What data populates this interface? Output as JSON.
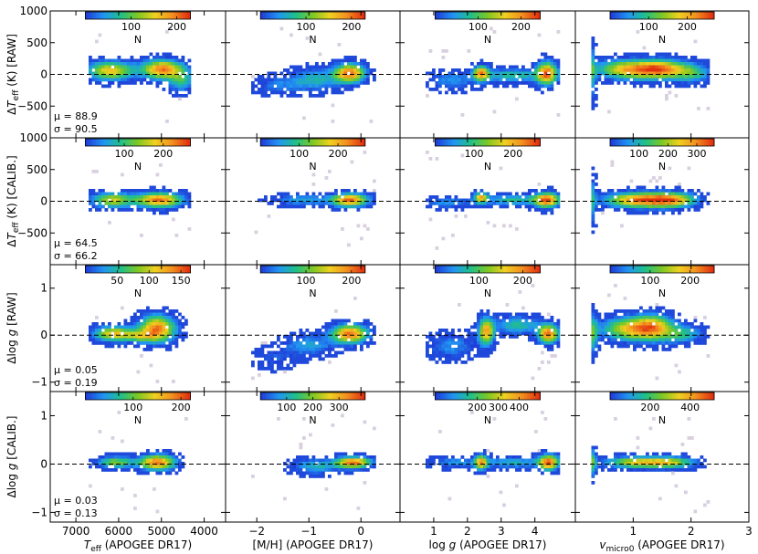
{
  "chart_data": {
    "type": "heatmap",
    "description_rows": [
      "ΔTeff RAW",
      "ΔTeff CALIB.",
      "Δlog g RAW",
      "Δlog g CALIB."
    ],
    "columns": [
      {
        "xlabel": "T_eff (APOGEE DR17)",
        "xlabel_main": "T",
        "xlabel_sub": "eff",
        "xlabel_rest": " (APOGEE DR17)",
        "xlim": [
          7600,
          3500
        ],
        "xticks": [
          7000,
          6000,
          5000,
          4000
        ],
        "xticklabels": [
          "7000",
          "6000",
          "5000",
          "4000"
        ]
      },
      {
        "xlabel": "[M/H] (APOGEE DR17)",
        "xlabel_main": "[M/H] (APOGEE DR17)",
        "xlabel_sub": "",
        "xlabel_rest": "",
        "xlim": [
          -2.6,
          0.75
        ],
        "xticks": [
          -2,
          -1,
          0
        ],
        "xticklabels": [
          "−2",
          "−1",
          "0"
        ]
      },
      {
        "xlabel": "log g (APOGEE DR17)",
        "xlabel_main": "log ",
        "xlabel_italic": "g",
        "xlabel_sub": "",
        "xlabel_rest": " (APOGEE DR17)",
        "xlim": [
          0.0,
          5.2
        ],
        "xticks": [
          1,
          2,
          3,
          4
        ],
        "xticklabels": [
          "1",
          "2",
          "3",
          "4"
        ]
      },
      {
        "xlabel": "v_micro0 (APOGEE DR17)",
        "xlabel_main": "v",
        "xlabel_sub": "micro0",
        "xlabel_rest": " (APOGEE DR17)",
        "xlim": [
          0.0,
          3.0
        ],
        "xticks": [
          1,
          2,
          3
        ],
        "xticklabels": [
          "1",
          "2",
          "3"
        ]
      }
    ],
    "rows": [
      {
        "ylabel_pre": "ΔT",
        "ylabel_sub": "eff",
        "ylabel_post": " (K) [RAW]",
        "ylim": [
          -1000,
          1000
        ],
        "yticks": [
          -500,
          0,
          500,
          1000
        ],
        "yticklabels": [
          "−500",
          "0",
          "500",
          "1000"
        ],
        "mu": "μ = 88.9",
        "sigma": "σ = 90.5",
        "colorbars": [
          {
            "max": 230,
            "ticks": [
              100,
              200
            ],
            "label": "N"
          },
          {
            "max": 230,
            "ticks": [
              100,
              200
            ],
            "label": "N"
          },
          {
            "max": 245,
            "ticks": [
              100,
              200
            ],
            "label": "N"
          },
          {
            "max": 270,
            "ticks": [
              100,
              200
            ],
            "label": "N"
          }
        ]
      },
      {
        "ylabel_pre": "ΔT",
        "ylabel_sub": "eff",
        "ylabel_post": " (K) [CALIB.]",
        "ylim": [
          -1000,
          1000
        ],
        "yticks": [
          -500,
          0,
          500,
          1000
        ],
        "yticklabels": [
          "−500",
          "0",
          "500",
          "1000"
        ],
        "mu": "μ = 64.5",
        "sigma": "σ = 66.2",
        "colorbars": [
          {
            "max": 270,
            "ticks": [
              100,
              200
            ],
            "label": "N"
          },
          {
            "max": 270,
            "ticks": [
              100,
              200
            ],
            "label": "N"
          },
          {
            "max": 270,
            "ticks": [
              100,
              200
            ],
            "label": "N"
          },
          {
            "max": 360,
            "ticks": [
              100,
              200,
              300
            ],
            "label": "N"
          }
        ]
      },
      {
        "ylabel_pre": "Δlog ",
        "ylabel_italic": "g",
        "ylabel_sub": "",
        "ylabel_post": " [RAW]",
        "ylim": [
          -1.2,
          1.5
        ],
        "yticks": [
          -1,
          0,
          1
        ],
        "yticklabels": [
          "−1",
          "0",
          "1"
        ],
        "mu": "μ = 0.05",
        "sigma": "σ = 0.19",
        "colorbars": [
          {
            "max": 165,
            "ticks": [
              50,
              100,
              150
            ],
            "label": "N"
          },
          {
            "max": 230,
            "ticks": [
              100,
              200
            ],
            "label": "N"
          },
          {
            "max": 240,
            "ticks": [
              100,
              200
            ],
            "label": "N"
          },
          {
            "max": 260,
            "ticks": [
              100,
              200
            ],
            "label": "N"
          }
        ]
      },
      {
        "ylabel_pre": "Δlog ",
        "ylabel_italic": "g",
        "ylabel_sub": "",
        "ylabel_post": " [CALIB.]",
        "ylim": [
          -1.2,
          1.5
        ],
        "yticks": [
          -1,
          0,
          1
        ],
        "yticklabels": [
          "−1",
          "0",
          "1"
        ],
        "mu": "μ = 0.03",
        "sigma": "σ = 0.13",
        "colorbars": [
          {
            "max": 220,
            "ticks": [
              100,
              200
            ],
            "label": "N"
          },
          {
            "max": 400,
            "ticks": [
              100,
              200,
              300
            ],
            "label": "N"
          },
          {
            "max": 500,
            "ticks": [
              200,
              300,
              400
            ],
            "label": "N"
          },
          {
            "max": 520,
            "ticks": [
              200,
              400
            ],
            "label": "N"
          }
        ]
      }
    ],
    "colormap": [
      "#1f3fd8",
      "#2196f3",
      "#20c08a",
      "#7ec823",
      "#f0d020",
      "#f39020",
      "#e03010"
    ],
    "sparse_color": "#d9d0df",
    "reference_line": {
      "y": 0,
      "style": "dashed",
      "color": "#000000"
    }
  }
}
